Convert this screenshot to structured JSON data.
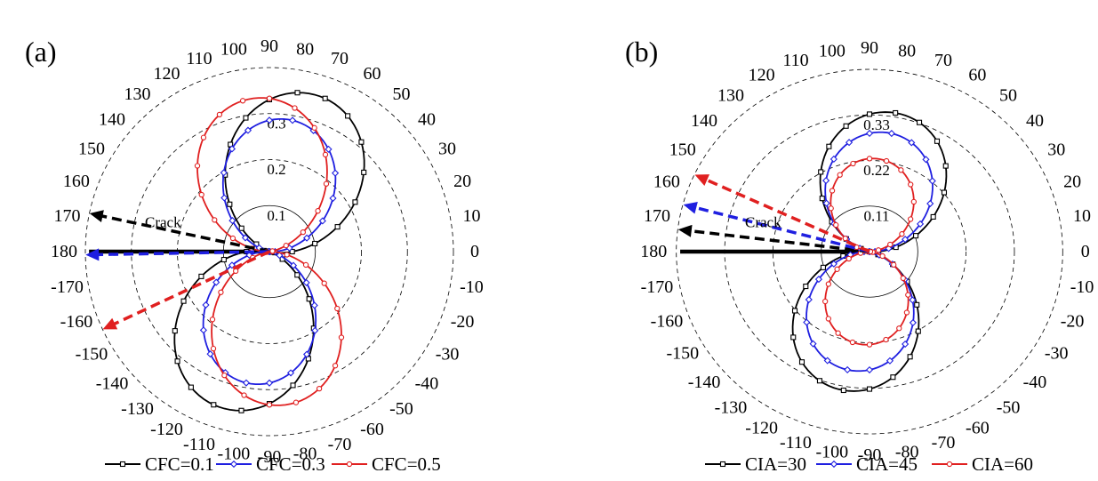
{
  "chart_data": [
    {
      "type": "polar-line",
      "panel_label": "(a)",
      "theta_unit": "degrees",
      "theta_ticks": [
        "0",
        "10",
        "20",
        "30",
        "40",
        "50",
        "60",
        "70",
        "80",
        "90",
        "100",
        "110",
        "120",
        "130",
        "140",
        "150",
        "160",
        "170",
        "180",
        "-170",
        "-160",
        "-150",
        "-140",
        "-130",
        "-120",
        "-110",
        "-100",
        "-90",
        "-80",
        "-70",
        "-60",
        "-50",
        "-40",
        "-30",
        "-20",
        "-10"
      ],
      "r_ticks": [
        "0.1",
        "0.2",
        "0.3"
      ],
      "r_tick_values": [
        0.1,
        0.2,
        0.3
      ],
      "r_max": 0.4,
      "annotation": "Crack",
      "model": "cos-lobe",
      "series": [
        {
          "name": "CFC=0.1",
          "color": "#000000",
          "marker": "square",
          "peak": 0.355,
          "angle": 73,
          "shape": 1.6
        },
        {
          "name": "CFC=0.3",
          "color": "#1f1fe0",
          "marker": "diamond",
          "peak": 0.29,
          "angle": 82,
          "shape": 1.6
        },
        {
          "name": "CFC=0.5",
          "color": "#e02020",
          "marker": "circle",
          "peak": 0.335,
          "angle": 95,
          "shape": 1.6
        }
      ],
      "arrows": [
        {
          "color": "#000000",
          "angle": 168
        },
        {
          "color": "#1f1fe0",
          "angle": 181
        },
        {
          "color": "#e02020",
          "angle": -155
        }
      ],
      "legend": [
        "CFC=0.1",
        "CFC=0.3",
        "CFC=0.5"
      ]
    },
    {
      "type": "polar-line",
      "panel_label": "(b)",
      "theta_unit": "degrees",
      "theta_ticks": [
        "0",
        "10",
        "20",
        "30",
        "40",
        "50",
        "60",
        "70",
        "80",
        "90",
        "100",
        "110",
        "120",
        "130",
        "140",
        "150",
        "160",
        "170",
        "180",
        "-170",
        "-160",
        "-150",
        "-140",
        "-130",
        "-120",
        "-110",
        "-100",
        "-90",
        "-80",
        "-70",
        "-60",
        "-50",
        "-40",
        "-30",
        "-20",
        "-10"
      ],
      "r_ticks": [
        "0.11",
        "0.22",
        "0.33"
      ],
      "r_tick_values": [
        0.11,
        0.22,
        0.33
      ],
      "r_max": 0.44,
      "annotation": "Crack",
      "model": "cos-lobe",
      "series": [
        {
          "name": "CIA=30",
          "color": "#000000",
          "marker": "square",
          "peak": 0.34,
          "angle": 80,
          "shape": 1.6
        },
        {
          "name": "CIA=45",
          "color": "#1f1fe0",
          "marker": "diamond",
          "peak": 0.29,
          "angle": 82,
          "shape": 1.6
        },
        {
          "name": "CIA=60",
          "color": "#e02020",
          "marker": "circle",
          "peak": 0.225,
          "angle": 87,
          "shape": 1.6
        }
      ],
      "arrows": [
        {
          "color": "#000000",
          "angle": 173
        },
        {
          "color": "#1f1fe0",
          "angle": 165
        },
        {
          "color": "#e02020",
          "angle": 155
        }
      ],
      "legend": [
        "CIA=30",
        "CIA=45",
        "CIA=60"
      ]
    }
  ]
}
